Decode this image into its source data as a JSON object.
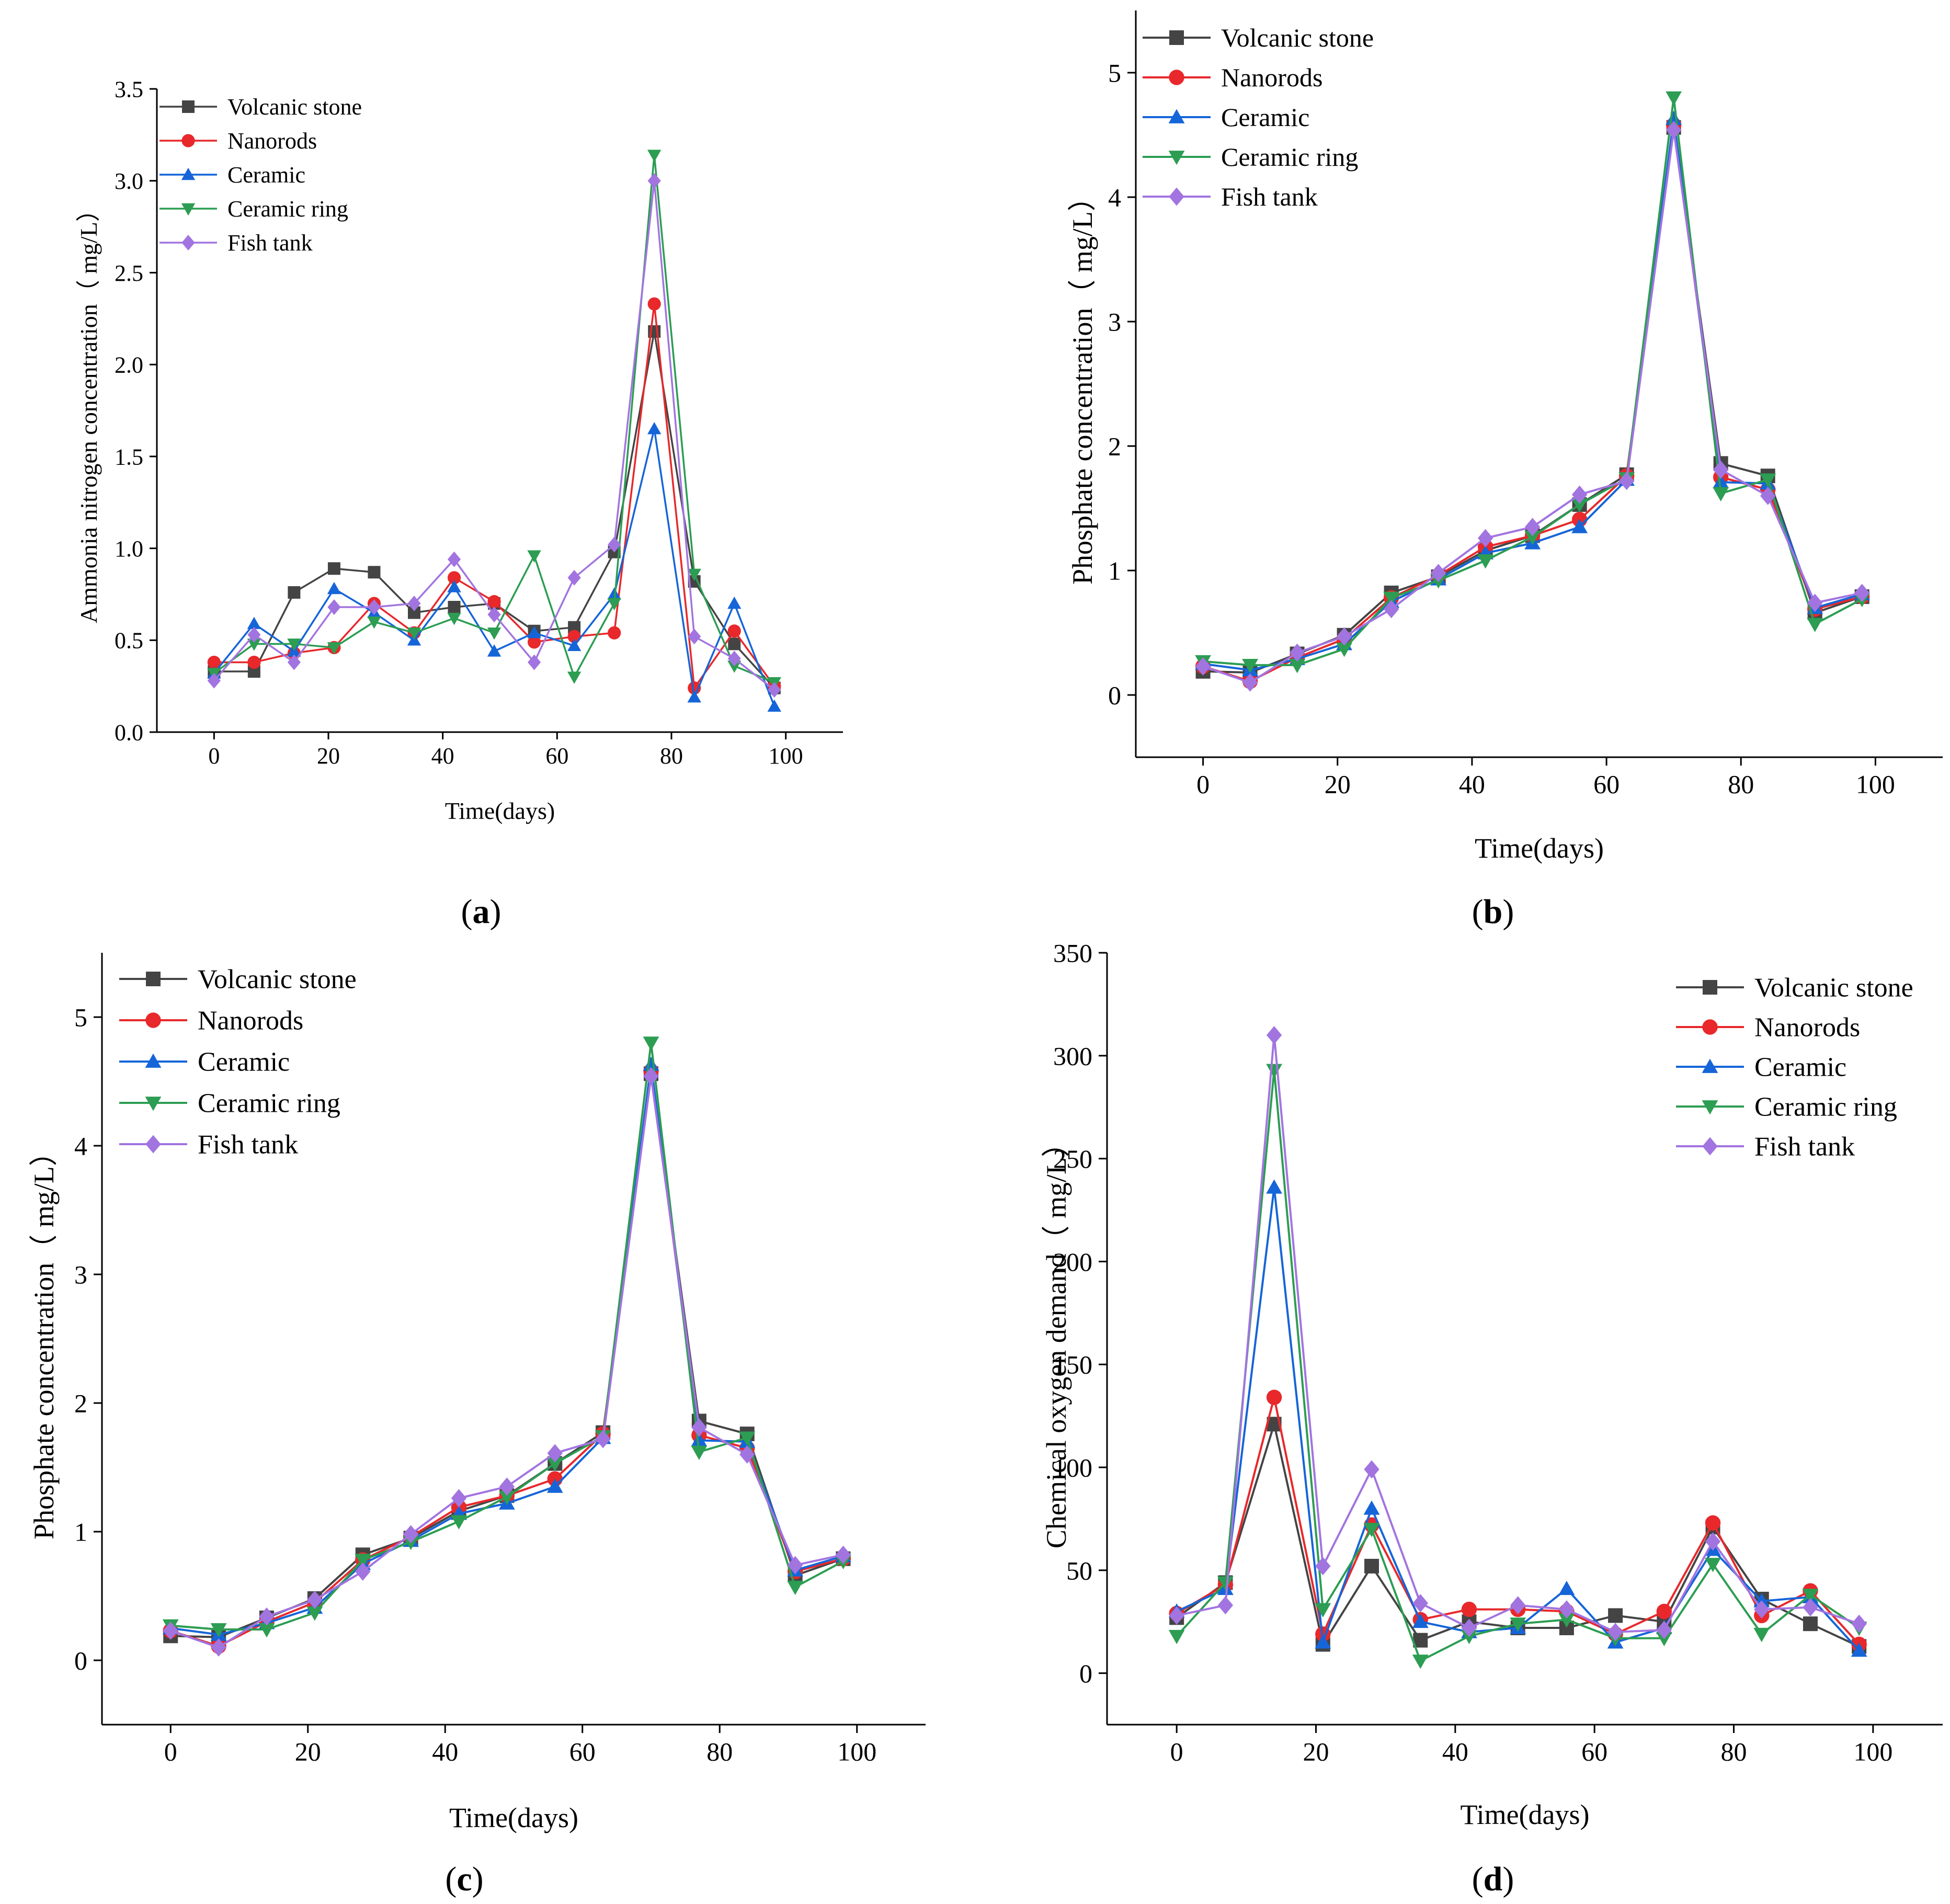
{
  "series_styles": [
    {
      "name": "Volcanic stone",
      "color": "#444444",
      "marker": "square"
    },
    {
      "name": "Nanorods",
      "color": "#e8282b",
      "marker": "circle"
    },
    {
      "name": "Ceramic",
      "color": "#1565d8",
      "marker": "triangle-up"
    },
    {
      "name": "Ceramic ring",
      "color": "#2c9d52",
      "marker": "triangle-down"
    },
    {
      "name": "Fish tank",
      "color": "#a274e0",
      "marker": "diamond"
    }
  ],
  "chart_data": [
    {
      "type": "line",
      "panel_label": "(a)",
      "xlabel": "Time(days)",
      "ylabel": "Ammonia nitrogen concentration（ mg/L）",
      "xlim": [
        -10,
        110
      ],
      "ylim": [
        0,
        3.5
      ],
      "xticks": [
        0,
        20,
        40,
        60,
        80,
        100
      ],
      "yticks": [
        0.0,
        0.5,
        1.0,
        1.5,
        2.0,
        2.5,
        3.0,
        3.5
      ],
      "ytick_labels": [
        "0.0",
        "0.5",
        "1.0",
        "1.5",
        "2.0",
        "2.5",
        "3.0",
        "3.5"
      ],
      "legend_position": "top-left",
      "grid": false,
      "x": [
        0,
        7,
        14,
        21,
        28,
        35,
        42,
        49,
        56,
        63,
        70,
        77,
        84,
        91,
        98
      ],
      "series": [
        {
          "name": "Volcanic stone",
          "values": [
            0.33,
            0.33,
            0.76,
            0.89,
            0.87,
            0.65,
            0.68,
            0.7,
            0.55,
            0.57,
            0.98,
            2.18,
            0.82,
            0.48,
            0.24
          ]
        },
        {
          "name": "Nanorods",
          "values": [
            0.38,
            0.38,
            0.43,
            0.46,
            0.7,
            0.54,
            0.84,
            0.71,
            0.49,
            0.52,
            0.54,
            2.33,
            0.24,
            0.55,
            0.25
          ]
        },
        {
          "name": "Ceramic",
          "values": [
            0.32,
            0.59,
            0.44,
            0.78,
            0.65,
            0.5,
            0.79,
            0.44,
            0.54,
            0.47,
            0.75,
            1.65,
            0.19,
            0.7,
            0.14
          ]
        },
        {
          "name": "Ceramic ring",
          "values": [
            0.32,
            0.48,
            0.48,
            0.46,
            0.6,
            0.54,
            0.62,
            0.54,
            0.96,
            0.3,
            0.7,
            3.14,
            0.86,
            0.36,
            0.27
          ]
        },
        {
          "name": "Fish tank",
          "values": [
            0.28,
            0.53,
            0.38,
            0.68,
            0.68,
            0.7,
            0.94,
            0.64,
            0.38,
            0.84,
            1.02,
            3.0,
            0.52,
            0.4,
            0.23
          ]
        }
      ]
    },
    {
      "type": "line",
      "panel_label": "(b)",
      "xlabel": "Time(days)",
      "ylabel": "Phosphate concentration（ mg/L）",
      "xlim": [
        -10,
        110
      ],
      "ylim": [
        -0.5,
        5.5
      ],
      "xticks": [
        0,
        20,
        40,
        60,
        80,
        100
      ],
      "yticks": [
        0,
        1,
        2,
        3,
        4,
        5
      ],
      "ytick_labels": [
        "0",
        "1",
        "2",
        "3",
        "4",
        "5"
      ],
      "legend_position": "top-left",
      "grid": false,
      "x": [
        0,
        7,
        14,
        21,
        28,
        35,
        42,
        49,
        56,
        63,
        70,
        77,
        84,
        91,
        98
      ],
      "series": [
        {
          "name": "Volcanic stone",
          "values": [
            0.19,
            0.18,
            0.33,
            0.48,
            0.82,
            0.95,
            1.16,
            1.28,
            1.53,
            1.77,
            4.56,
            1.86,
            1.76,
            0.66,
            0.79
          ]
        },
        {
          "name": "Nanorods",
          "values": [
            0.23,
            0.11,
            0.3,
            0.45,
            0.78,
            0.96,
            1.19,
            1.28,
            1.41,
            1.76,
            4.58,
            1.75,
            1.65,
            0.69,
            0.79
          ]
        },
        {
          "name": "Ceramic",
          "values": [
            0.25,
            0.2,
            0.29,
            0.41,
            0.75,
            0.93,
            1.14,
            1.22,
            1.35,
            1.73,
            4.63,
            1.71,
            1.7,
            0.7,
            0.81
          ]
        },
        {
          "name": "Ceramic ring",
          "values": [
            0.27,
            0.24,
            0.24,
            0.37,
            0.78,
            0.92,
            1.08,
            1.27,
            1.53,
            1.74,
            4.8,
            1.62,
            1.73,
            0.57,
            0.77
          ]
        },
        {
          "name": "Fish tank",
          "values": [
            0.23,
            0.1,
            0.34,
            0.47,
            0.69,
            0.98,
            1.26,
            1.35,
            1.61,
            1.72,
            4.54,
            1.81,
            1.6,
            0.74,
            0.82
          ]
        }
      ]
    },
    {
      "type": "line",
      "panel_label": "(c)",
      "xlabel": "Time(days)",
      "ylabel": "Phosphate concentration（ mg/L）",
      "xlim": [
        -10,
        110
      ],
      "ylim": [
        -0.5,
        5.5
      ],
      "xticks": [
        0,
        20,
        40,
        60,
        80,
        100
      ],
      "yticks": [
        0,
        1,
        2,
        3,
        4,
        5
      ],
      "ytick_labels": [
        "0",
        "1",
        "2",
        "3",
        "4",
        "5"
      ],
      "legend_position": "top-left",
      "grid": false,
      "x": [
        0,
        7,
        14,
        21,
        28,
        35,
        42,
        49,
        56,
        63,
        70,
        77,
        84,
        91,
        98
      ],
      "series": [
        {
          "name": "Volcanic stone",
          "values": [
            0.19,
            0.18,
            0.33,
            0.48,
            0.82,
            0.95,
            1.16,
            1.28,
            1.53,
            1.77,
            4.56,
            1.86,
            1.76,
            0.66,
            0.79
          ]
        },
        {
          "name": "Nanorods",
          "values": [
            0.23,
            0.11,
            0.3,
            0.45,
            0.78,
            0.96,
            1.19,
            1.28,
            1.41,
            1.76,
            4.58,
            1.75,
            1.65,
            0.69,
            0.79
          ]
        },
        {
          "name": "Ceramic",
          "values": [
            0.25,
            0.2,
            0.29,
            0.41,
            0.75,
            0.93,
            1.14,
            1.22,
            1.35,
            1.73,
            4.63,
            1.71,
            1.7,
            0.7,
            0.81
          ]
        },
        {
          "name": "Ceramic ring",
          "values": [
            0.27,
            0.24,
            0.24,
            0.37,
            0.78,
            0.92,
            1.08,
            1.27,
            1.53,
            1.74,
            4.8,
            1.62,
            1.73,
            0.57,
            0.77
          ]
        },
        {
          "name": "Fish tank",
          "values": [
            0.23,
            0.1,
            0.34,
            0.47,
            0.69,
            0.98,
            1.26,
            1.35,
            1.61,
            1.72,
            4.54,
            1.81,
            1.6,
            0.74,
            0.82
          ]
        }
      ]
    },
    {
      "type": "line",
      "panel_label": "(d)",
      "xlabel": "Time(days)",
      "ylabel": "Chemical oxygen demand（ mg/L）",
      "xlim": [
        -10,
        110
      ],
      "ylim": [
        -25,
        350
      ],
      "xticks": [
        0,
        20,
        40,
        60,
        80,
        100
      ],
      "yticks": [
        0,
        50,
        100,
        150,
        200,
        250,
        300,
        350
      ],
      "ytick_labels": [
        "0",
        "50",
        "100",
        "150",
        "200",
        "250",
        "300",
        "350"
      ],
      "legend_position": "top-right",
      "grid": false,
      "x": [
        0,
        7,
        14,
        21,
        28,
        35,
        42,
        49,
        56,
        63,
        70,
        77,
        84,
        91,
        98
      ],
      "series": [
        {
          "name": "Volcanic stone",
          "values": [
            27,
            44,
            121,
            14,
            52,
            16,
            25,
            22,
            22,
            28,
            25,
            71,
            36,
            24,
            13
          ]
        },
        {
          "name": "Nanorods",
          "values": [
            29,
            43,
            134,
            19,
            72,
            26,
            31,
            31,
            30,
            19,
            30,
            73,
            28,
            40,
            14
          ]
        },
        {
          "name": "Ceramic",
          "values": [
            30,
            41,
            236,
            15,
            80,
            25,
            20,
            22,
            41,
            15,
            22,
            60,
            35,
            37,
            11
          ]
        },
        {
          "name": "Ceramic ring",
          "values": [
            18,
            44,
            293,
            31,
            70,
            6,
            18,
            24,
            26,
            17,
            17,
            53,
            19,
            38,
            22
          ]
        },
        {
          "name": "Fish tank",
          "values": [
            28,
            33,
            310,
            52,
            99,
            34,
            22,
            33,
            31,
            20,
            21,
            64,
            31,
            32,
            24
          ]
        }
      ]
    }
  ]
}
